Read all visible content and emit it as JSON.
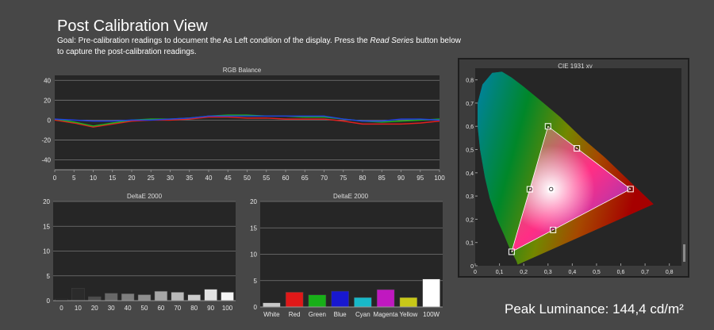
{
  "header": {
    "title": "Post Calibration View",
    "goal_prefix": "Goal: Pre-calibration readings to document the As Left condition of the display. Press the ",
    "goal_emphasis": "Read Series",
    "goal_suffix": " button below to capture the post-calibration readings."
  },
  "footer": {
    "peak_luminance": "Peak Luminance: 144,4 cd/m²"
  },
  "chart_data": [
    {
      "type": "line",
      "title": "RGB Balance",
      "x": [
        0,
        5,
        10,
        15,
        20,
        25,
        30,
        35,
        40,
        45,
        50,
        55,
        60,
        65,
        70,
        75,
        80,
        85,
        90,
        95,
        100
      ],
      "xticks": [
        "0",
        "5",
        "10",
        "15",
        "20",
        "25",
        "30",
        "35",
        "40",
        "45",
        "50",
        "55",
        "60",
        "65",
        "70",
        "75",
        "80",
        "85",
        "90",
        "95",
        "100"
      ],
      "yticks": [
        "40",
        "20",
        "0",
        "-20",
        "-40"
      ],
      "ylim": [
        -50,
        45
      ],
      "grid": true,
      "series": [
        {
          "color": "#e02020",
          "values": [
            0,
            -3,
            -7,
            -4,
            -1,
            0,
            0,
            1,
            3,
            3,
            2,
            2,
            1,
            1,
            1,
            -1,
            -4,
            -4,
            -4,
            -3,
            -1
          ]
        },
        {
          "color": "#20b020",
          "values": [
            1,
            -2,
            -6,
            -3,
            0,
            1,
            1,
            2,
            4,
            5,
            5,
            4,
            4,
            3,
            3,
            1,
            -1,
            -2,
            -1,
            0,
            1
          ]
        },
        {
          "color": "#2040e0",
          "values": [
            1,
            0,
            -1,
            -1,
            0,
            0,
            1,
            2,
            4,
            4,
            4,
            4,
            4,
            4,
            4,
            1,
            -1,
            -1,
            1,
            1,
            0
          ]
        }
      ]
    },
    {
      "type": "bar",
      "title": "DeltaE 2000",
      "categories": [
        "0",
        "10",
        "20",
        "30",
        "40",
        "50",
        "60",
        "70",
        "80",
        "90",
        "100"
      ],
      "values": [
        0.3,
        2.5,
        0.8,
        1.5,
        1.4,
        1.2,
        1.9,
        1.7,
        1.2,
        2.3,
        1.7
      ],
      "colors": [
        "#111111",
        "#2b2b2b",
        "#4d4d4d",
        "#676767",
        "#7e7e7e",
        "#8f8f8f",
        "#a6a6a6",
        "#b9b9b9",
        "#cccccc",
        "#e2e2e2",
        "#f4f4f4"
      ],
      "yticks": [
        "20",
        "15",
        "10",
        "5",
        "0"
      ],
      "ylim": [
        0,
        20
      ]
    },
    {
      "type": "bar",
      "title": "DeltaE 2000",
      "categories": [
        "White",
        "Red",
        "Green",
        "Blue",
        "Cyan",
        "Magenta",
        "Yellow",
        "100W"
      ],
      "values": [
        0.8,
        2.8,
        2.3,
        3.0,
        1.8,
        3.3,
        1.8,
        5.3
      ],
      "colors": [
        "#c8c8c8",
        "#e01818",
        "#18b018",
        "#1818d0",
        "#18b8c8",
        "#c018c0",
        "#c8c818",
        "#ffffff"
      ],
      "yticks": [
        "20",
        "15",
        "10",
        "5",
        "0"
      ],
      "ylim": [
        0,
        20
      ]
    },
    {
      "type": "scatter",
      "title": "CIE 1931 xy",
      "xticks": [
        "0",
        "0,1",
        "0,2",
        "0,3",
        "0,4",
        "0,5",
        "0,6",
        "0,7",
        "0,8"
      ],
      "yticks": [
        "0,8",
        "0,7",
        "0,6",
        "0,5",
        "0,4",
        "0,3",
        "0,2",
        "0,1",
        "0"
      ],
      "xlim": [
        0,
        0.85
      ],
      "ylim": [
        0,
        0.85
      ],
      "gamut": [
        [
          0.64,
          0.33
        ],
        [
          0.3,
          0.6
        ],
        [
          0.15,
          0.06
        ]
      ],
      "targets": [
        {
          "x": 0.64,
          "y": 0.33
        },
        {
          "x": 0.3,
          "y": 0.6
        },
        {
          "x": 0.15,
          "y": 0.06
        },
        {
          "x": 0.225,
          "y": 0.329
        },
        {
          "x": 0.321,
          "y": 0.154
        },
        {
          "x": 0.419,
          "y": 0.505
        },
        {
          "x": 0.3127,
          "y": 0.329
        }
      ],
      "measured": [
        {
          "x": 0.639,
          "y": 0.331
        },
        {
          "x": 0.301,
          "y": 0.598
        },
        {
          "x": 0.151,
          "y": 0.061
        },
        {
          "x": 0.226,
          "y": 0.33
        },
        {
          "x": 0.32,
          "y": 0.156
        },
        {
          "x": 0.419,
          "y": 0.506
        },
        {
          "x": 0.313,
          "y": 0.33
        }
      ]
    }
  ]
}
